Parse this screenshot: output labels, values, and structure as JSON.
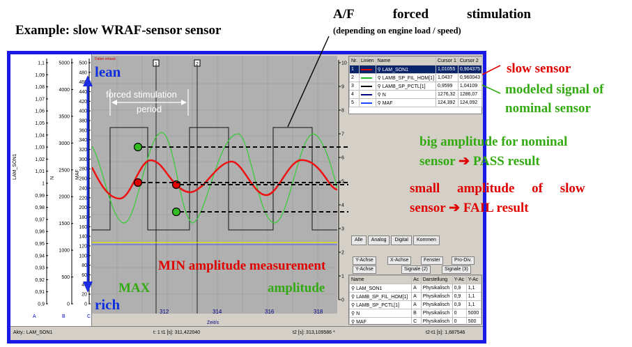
{
  "titles": {
    "example": "Example: slow WRAF-sensor sensor",
    "af_words": [
      "A/F",
      "forced",
      "stimulation"
    ],
    "af_sub": "(depending on engine load / speed)"
  },
  "axes": {
    "lam_label": "LAM_SON1",
    "n_label": "N",
    "maf_label": "MAF",
    "lam_ticks": [
      "1,1",
      "1,09",
      "1,08",
      "1,07",
      "1,06",
      "1,05",
      "1,04",
      "1,03",
      "1,02",
      "1,01",
      "1",
      "0,99",
      "0,98",
      "0,97",
      "0,96",
      "0,95",
      "0,94",
      "0,93",
      "0,92",
      "0,91",
      "0,9"
    ],
    "n_ticks": [
      "5000",
      "4000",
      "3500",
      "3000",
      "2500",
      "2000",
      "1500",
      "1000",
      "500",
      "0"
    ],
    "maf_ticks": [
      "500",
      "480",
      "460",
      "440",
      "420",
      "400",
      "380",
      "360",
      "340",
      "320",
      "300",
      "280",
      "260",
      "240",
      "220",
      "200",
      "180",
      "160",
      "140",
      "120",
      "100",
      "80",
      "60",
      "40",
      "20",
      "0"
    ],
    "bottom_letters": [
      "A",
      "B",
      "C"
    ],
    "right_ticks": [
      "10",
      "9",
      "8",
      "7",
      "6",
      "5",
      "4",
      "3",
      "2",
      "1",
      "0"
    ],
    "x_ticks": [
      "312",
      "314",
      "316",
      "318"
    ],
    "x_label": "Zeit/s",
    "cursor_1": "1",
    "cursor_2": "2",
    "top_note": "Daten erfasst"
  },
  "plot_labels": {
    "lean": "lean",
    "rich": "rich",
    "forced_stim": "forced stimulation",
    "period": "period",
    "min_amp": "MIN amplitude measurement",
    "max": "MAX",
    "amplitude": "amplitude"
  },
  "annotations": {
    "slow_sensor": "slow sensor",
    "modeled_1": "modeled signal of",
    "modeled_2": "nominal sensor",
    "big_1": "big amplitude for nominal",
    "big_2": "sensor",
    "big_result": "PASS result",
    "small_1": "small amplitude of slow",
    "small_2": "sensor",
    "small_result": "FAIL result"
  },
  "channel_table": {
    "headers": [
      "Nr.",
      "Linien",
      "Name",
      "Cursor 1",
      "Cursor 2"
    ],
    "rows": [
      {
        "nr": "1",
        "name": "LAM_SON1",
        "c1": "1,01055",
        "c2": "0,904375",
        "color": "#e00000"
      },
      {
        "nr": "2",
        "name": "LAMB_SP_FIL_HOM[1]",
        "c1": "1,0437",
        "c2": "0,960043",
        "color": "#22bb22"
      },
      {
        "nr": "3",
        "name": "LAMB_SP_PCTL[1]",
        "c1": "0,9599",
        "c2": "1,04109",
        "color": "#000000"
      },
      {
        "nr": "4",
        "name": "N",
        "c1": "1276,32",
        "c2": "1286,07",
        "color": "#000080"
      },
      {
        "nr": "5",
        "name": "MAF",
        "c1": "124,392",
        "c2": "124,092",
        "color": "#2040ff"
      }
    ]
  },
  "tabs": [
    "Alle",
    "Analog",
    "Digital",
    "Kommen"
  ],
  "tabs2_top": [
    "Y-Achse",
    "X-Achse",
    "Fenster",
    "Pro-Div."
  ],
  "tabs2_bottom": [
    "Y-Achse",
    "Signale (2)",
    "Signale (3)"
  ],
  "signal_table": {
    "headers": [
      "Name",
      "Ac",
      "Darstellung",
      "Y-Ac",
      "Y-Ac"
    ],
    "rows": [
      [
        "LAM_SON1",
        "A",
        "Physikalisch",
        "0,9",
        "1,1"
      ],
      [
        "LAMB_SP_FIL_HOM[1]",
        "A",
        "Physikalisch",
        "0,9",
        "1,1"
      ],
      [
        "LAMB_SP_PCTL[1]",
        "A",
        "Physikalisch",
        "0,9",
        "1,1"
      ],
      [
        "N",
        "B",
        "Physikalisch",
        "0",
        "5000"
      ],
      [
        "MAF",
        "C",
        "Physikalisch",
        "0",
        "500"
      ]
    ]
  },
  "status": {
    "left": "Akty.: LAM_SON1",
    "t1": "t: 1 t1 [s]: 311,422040",
    "t2": "t2 [s]: 313,109586 *",
    "dt": "t2-t1 [s]: 1,687546"
  }
}
